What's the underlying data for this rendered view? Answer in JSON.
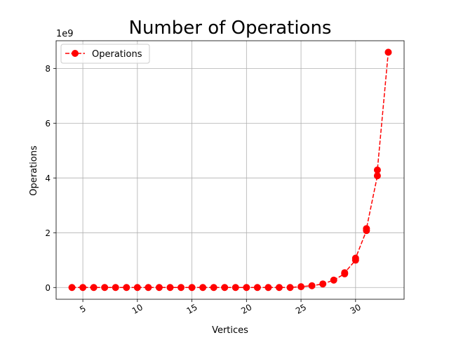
{
  "chart_data": {
    "type": "line",
    "title": "Number of Operations",
    "xlabel": "Vertices",
    "ylabel": "Operations",
    "y_offset_label": "1e9",
    "y_scale": 1000000000,
    "xlim": [
      2.55,
      34.45
    ],
    "ylim": [
      -429000000,
      9010000000
    ],
    "x_ticks": [
      5,
      10,
      15,
      20,
      25,
      30
    ],
    "x_tick_labels": [
      "5",
      "10",
      "15",
      "20",
      "25",
      "30"
    ],
    "y_ticks": [
      0,
      2000000000,
      4000000000,
      6000000000,
      8000000000
    ],
    "y_tick_labels": [
      "0",
      "2",
      "4",
      "6",
      "8"
    ],
    "x_tick_rotation": 30,
    "grid": true,
    "legend_position": "upper-left",
    "colors": {
      "series": "#ff0000",
      "grid": "#b0b0b0",
      "axes": "#000000",
      "background": "#ffffff"
    },
    "series": [
      {
        "name": "Operations",
        "line_style": "dashed",
        "marker": "circle",
        "color": "#ff0000",
        "x": [
          4,
          5,
          6,
          7,
          8,
          9,
          10,
          11,
          12,
          13,
          14,
          15,
          16,
          17,
          18,
          19,
          20,
          21,
          22,
          23,
          24,
          25,
          26,
          27,
          28,
          29,
          29,
          30,
          30,
          31,
          31,
          32,
          32,
          33
        ],
        "values": [
          0,
          0,
          0,
          0,
          0,
          0,
          0,
          0,
          0,
          0,
          0,
          0,
          0,
          0,
          0,
          0,
          0,
          0,
          0,
          0,
          0,
          30000000,
          65000000,
          130000000,
          270000000,
          500000000,
          540000000,
          1000000000,
          1070000000,
          2080000000,
          2150000000,
          4080000000,
          4290000000,
          8590000000
        ]
      }
    ]
  }
}
